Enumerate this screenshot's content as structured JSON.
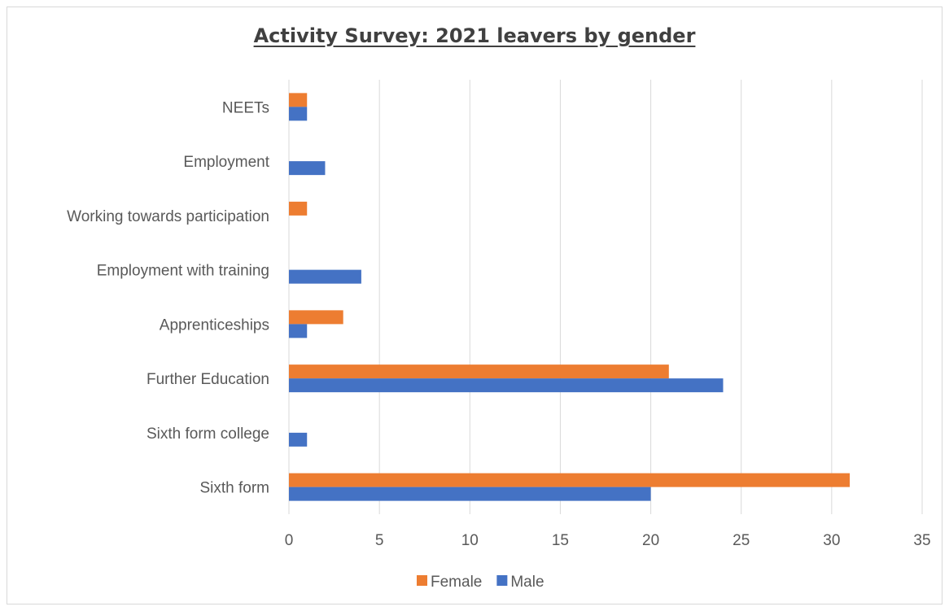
{
  "chart_data": {
    "type": "bar",
    "orientation": "horizontal",
    "title": "Activity Survey: 2021 leavers by gender",
    "categories": [
      "NEETs",
      "Employment",
      "Working towards participation",
      "Employment with training",
      "Apprenticeships",
      "Further Education",
      "Sixth form college",
      "Sixth form"
    ],
    "series": [
      {
        "name": "Female",
        "color": "#ed7d31",
        "values": [
          1,
          0,
          1,
          0,
          3,
          21,
          0,
          31
        ]
      },
      {
        "name": "Male",
        "color": "#4472c4",
        "values": [
          1,
          2,
          0,
          4,
          1,
          24,
          1,
          20
        ]
      }
    ],
    "xlim": [
      0,
      35
    ],
    "xticks": [
      0,
      5,
      10,
      15,
      20,
      25,
      30,
      35
    ],
    "grid": true,
    "legend_position": "bottom",
    "legend_order": [
      "Female",
      "Male"
    ]
  }
}
